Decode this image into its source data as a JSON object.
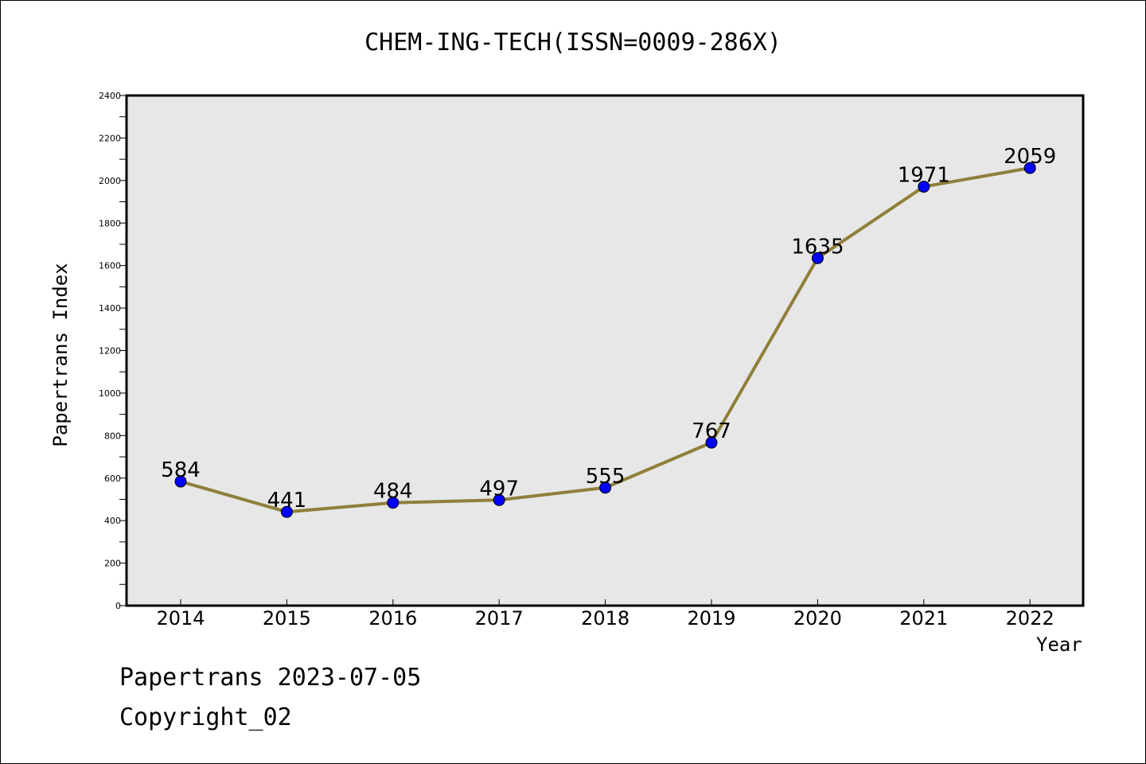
{
  "chart_data": {
    "type": "line",
    "title": "CHEM-ING-TECH(ISSN=0009-286X)",
    "xlabel": "Year",
    "ylabel": "Papertrans Index",
    "categories": [
      "2014",
      "2015",
      "2016",
      "2017",
      "2018",
      "2019",
      "2020",
      "2021",
      "2022"
    ],
    "values": [
      584,
      441,
      484,
      497,
      555,
      767,
      1635,
      1971,
      2059
    ],
    "data_labels": [
      "584",
      "441",
      "484",
      "497",
      "555",
      "767",
      "1635",
      "1971",
      "2059"
    ],
    "ylim": [
      0,
      2400
    ],
    "yticks": [
      0,
      200,
      400,
      600,
      800,
      1000,
      1200,
      1400,
      1600,
      1800,
      2000,
      2200,
      2400
    ],
    "ytick_labels": [
      "0",
      "200",
      "400",
      "600",
      "800",
      "1000",
      "1200",
      "1400",
      "1600",
      "1800",
      "2000",
      "2200",
      "2400"
    ],
    "grid": false,
    "colors": {
      "line": "#8f7f3a",
      "marker": "#0000ff",
      "plot_background": "#e7e7e7"
    }
  },
  "footer": {
    "date_text": "Papertrans 2023-07-05",
    "copyright_text": "Copyright_02"
  }
}
